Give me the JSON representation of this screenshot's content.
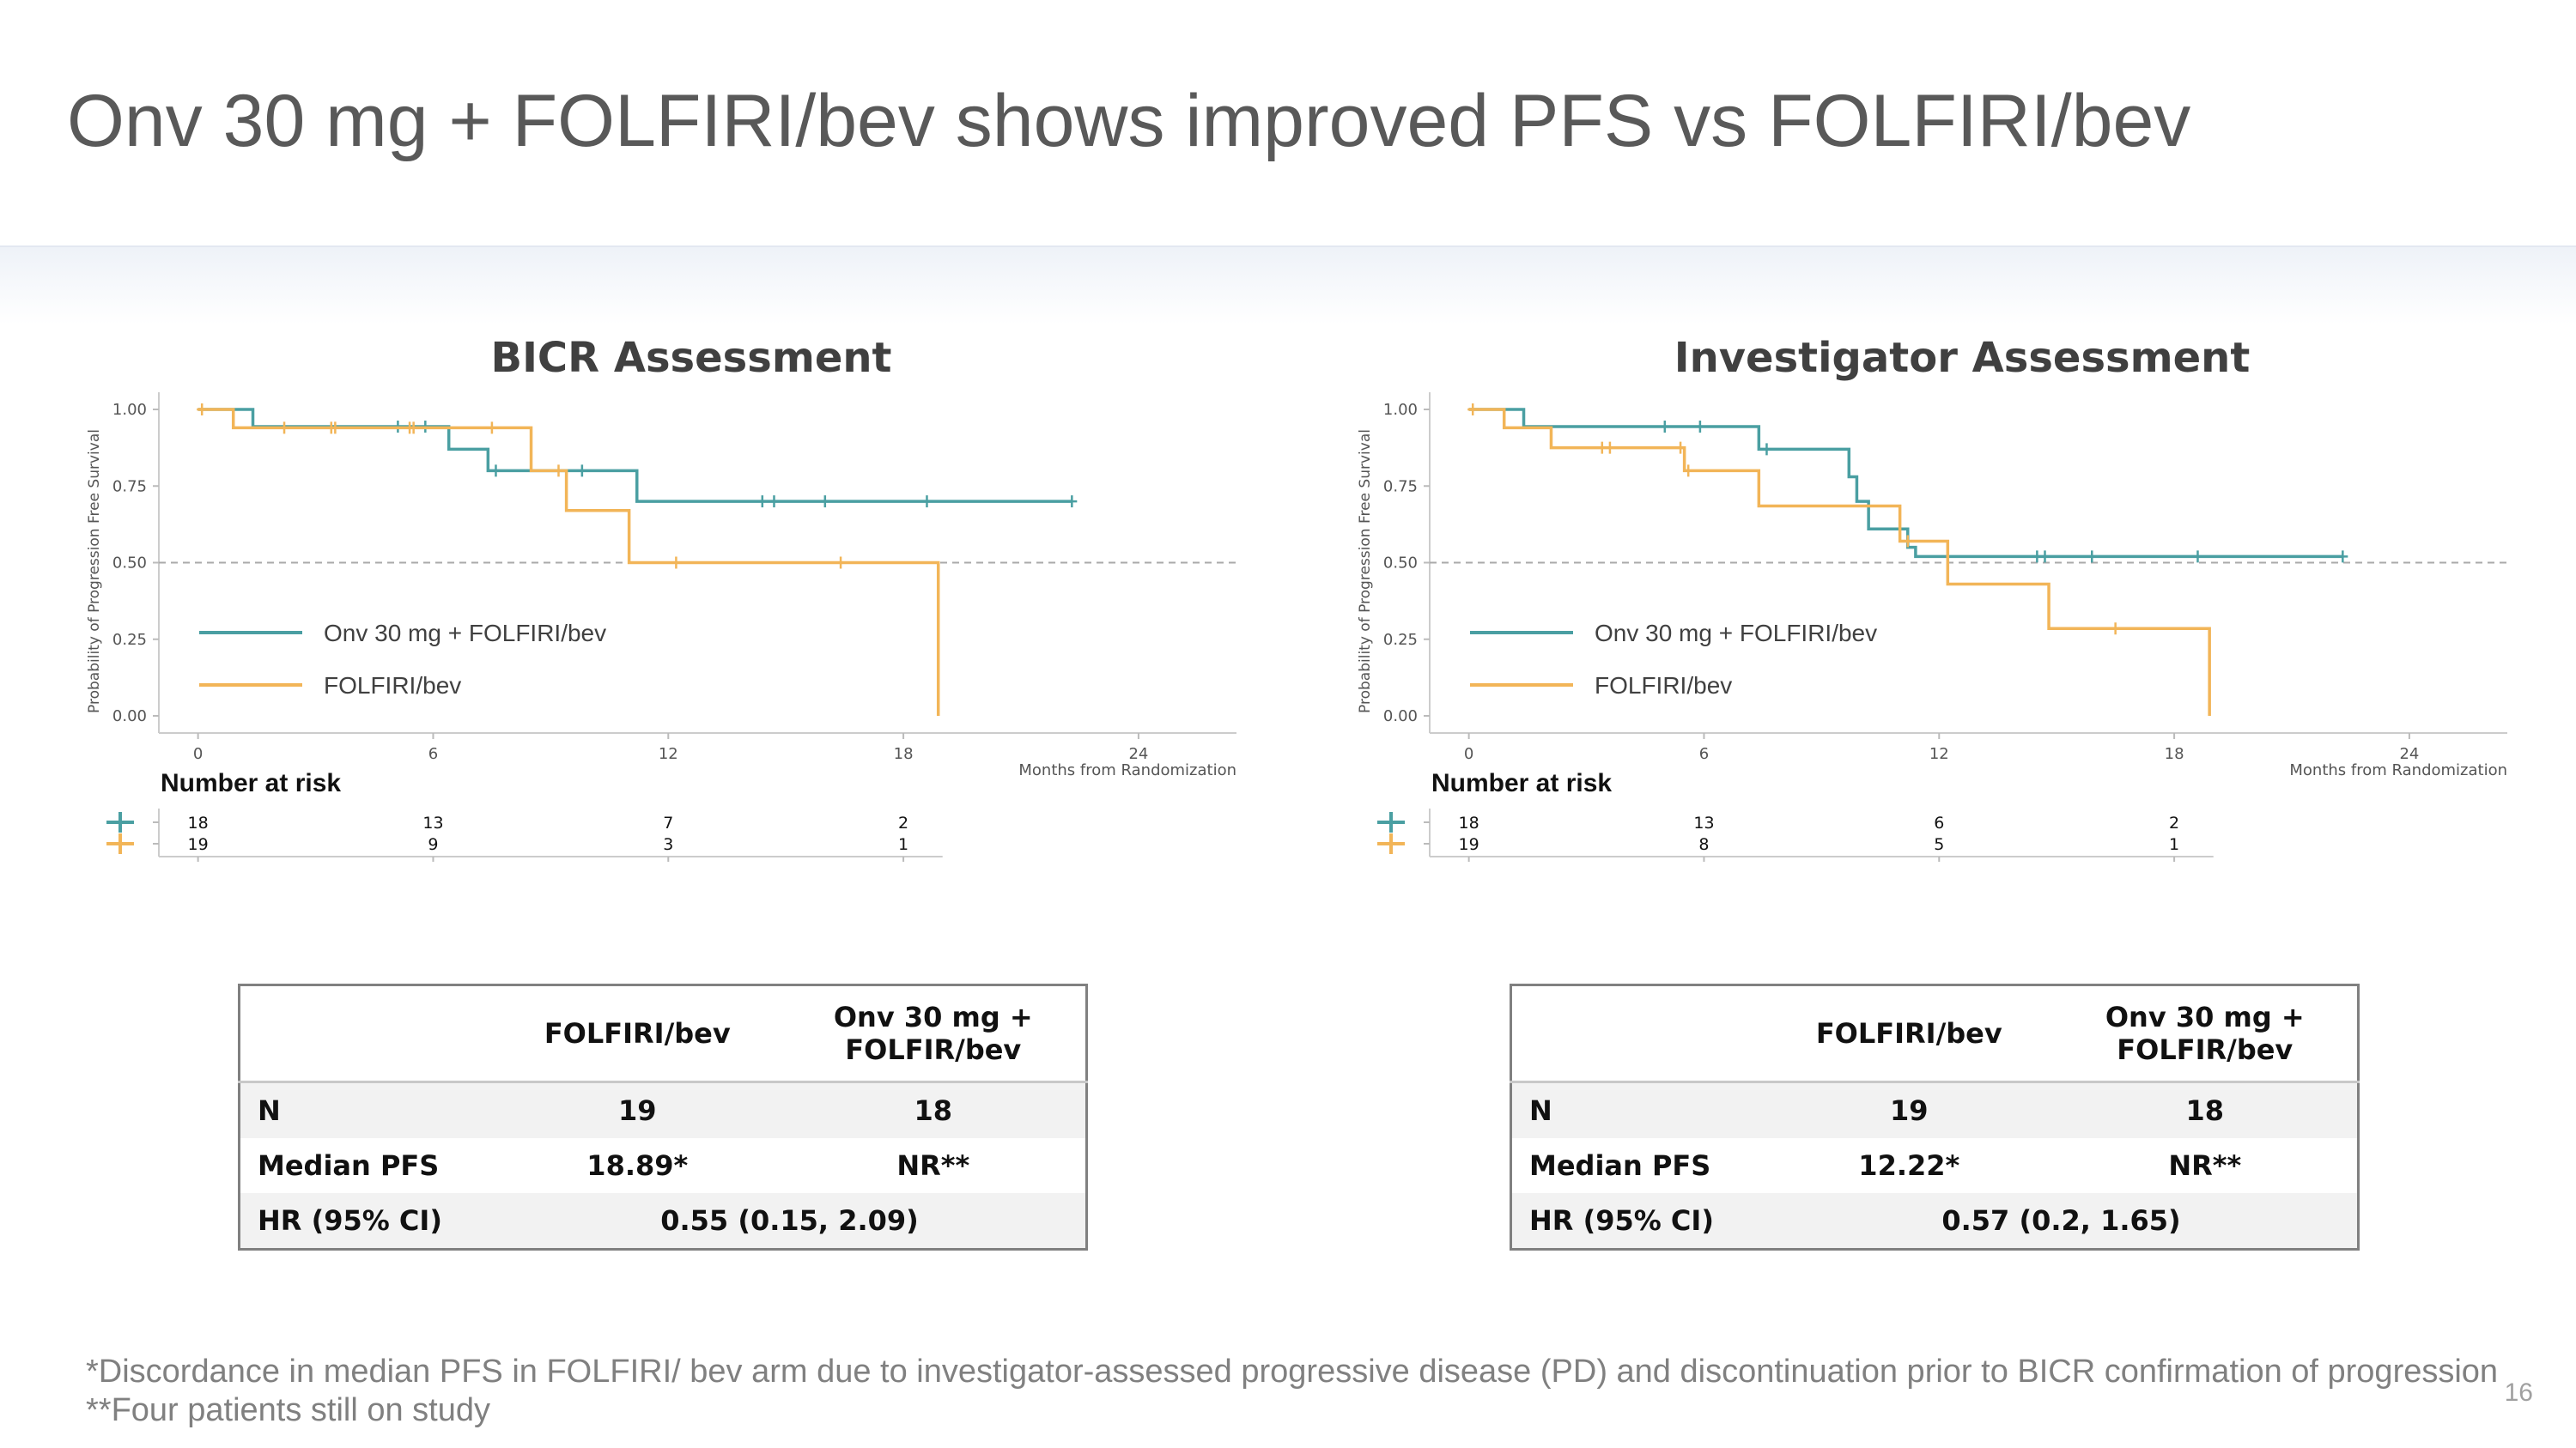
{
  "slide": {
    "title": "Onv 30 mg + FOLFIRI/bev shows improved PFS vs FOLFIRI/bev",
    "footnote1": "*Discordance in median PFS in FOLFIRI/ bev arm due to investigator-assessed progressive disease (PD) and discontinuation prior to BICR confirmation of progression",
    "footnote2": "**Four patients still on study",
    "page_number": "16"
  },
  "colors": {
    "onv": "#4a9fa2",
    "folfiri": "#f2b558",
    "reference_line": "#aaaaaa"
  },
  "chart_data": [
    {
      "type": "line",
      "subtype": "kaplan-meier",
      "title": "BICR Assessment",
      "ylabel": "Probability of Progression Free Survival",
      "xlabel": "Months from Randomization",
      "xlim": [
        -1,
        26.5
      ],
      "ylim": [
        0,
        1
      ],
      "xticks": [
        0,
        6,
        12,
        18,
        24
      ],
      "yticks": [
        "0.00",
        "0.25",
        "0.50",
        "0.75",
        "1.00"
      ],
      "reference_y": 0.5,
      "legend": {
        "position": "bottom-left",
        "entries": [
          "Onv 30 mg + FOLFIRI/bev",
          "FOLFIRI/bev"
        ]
      },
      "series": [
        {
          "name": "Onv 30 mg + FOLFIRI/bev",
          "color": "#4a9fa2",
          "steps": [
            [
              0,
              1.0
            ],
            [
              1.4,
              0.944
            ],
            [
              6.4,
              0.87
            ],
            [
              7.4,
              0.8
            ],
            [
              11.2,
              0.7
            ]
          ],
          "end_x": 22.3,
          "censored": [
            [
              5.1,
              0.944
            ],
            [
              5.8,
              0.944
            ],
            [
              7.6,
              0.8
            ],
            [
              9.8,
              0.8
            ],
            [
              14.4,
              0.7
            ],
            [
              14.7,
              0.7
            ],
            [
              16.0,
              0.7
            ],
            [
              18.6,
              0.7
            ],
            [
              22.3,
              0.7
            ]
          ]
        },
        {
          "name": "FOLFIRI/bev",
          "color": "#f2b558",
          "steps": [
            [
              0,
              1.0
            ],
            [
              0.9,
              0.94
            ],
            [
              8.5,
              0.8
            ],
            [
              9.4,
              0.67
            ],
            [
              11.0,
              0.5
            ],
            [
              18.89,
              0.0
            ]
          ],
          "end_x": 18.89,
          "censored": [
            [
              0.1,
              1.0
            ],
            [
              2.2,
              0.94
            ],
            [
              3.4,
              0.94
            ],
            [
              3.5,
              0.94
            ],
            [
              5.4,
              0.94
            ],
            [
              5.5,
              0.94
            ],
            [
              7.5,
              0.94
            ],
            [
              9.2,
              0.8
            ],
            [
              12.2,
              0.5
            ],
            [
              16.4,
              0.5
            ]
          ]
        }
      ],
      "number_at_risk": {
        "title": "Number at risk",
        "times": [
          0,
          6,
          12,
          18
        ],
        "rows": [
          {
            "name": "Onv 30 mg + FOLFIRI/bev",
            "values": [
              "18",
              "13",
              "7",
              "2"
            ]
          },
          {
            "name": "FOLFIRI/bev",
            "values": [
              "19",
              "9",
              "3",
              "1"
            ]
          }
        ]
      }
    },
    {
      "type": "line",
      "subtype": "kaplan-meier",
      "title": "Investigator Assessment",
      "ylabel": "Probability of Progression Free Survival",
      "xlabel": "Months from Randomization",
      "xlim": [
        -1,
        26.5
      ],
      "ylim": [
        0,
        1
      ],
      "xticks": [
        0,
        6,
        12,
        18,
        24
      ],
      "yticks": [
        "0.00",
        "0.25",
        "0.50",
        "0.75",
        "1.00"
      ],
      "reference_y": 0.5,
      "legend": {
        "position": "bottom-left",
        "entries": [
          "Onv 30 mg + FOLFIRI/bev",
          "FOLFIRI/bev"
        ]
      },
      "series": [
        {
          "name": "Onv 30 mg + FOLFIRI/bev",
          "color": "#4a9fa2",
          "steps": [
            [
              0,
              1.0
            ],
            [
              1.4,
              0.944
            ],
            [
              7.4,
              0.87
            ],
            [
              9.7,
              0.78
            ],
            [
              9.9,
              0.7
            ],
            [
              10.2,
              0.61
            ],
            [
              11.2,
              0.55
            ],
            [
              11.4,
              0.52
            ]
          ],
          "end_x": 22.3,
          "censored": [
            [
              5.0,
              0.944
            ],
            [
              5.9,
              0.944
            ],
            [
              7.6,
              0.87
            ],
            [
              14.5,
              0.52
            ],
            [
              14.7,
              0.52
            ],
            [
              15.9,
              0.52
            ],
            [
              18.6,
              0.52
            ],
            [
              22.3,
              0.52
            ]
          ]
        },
        {
          "name": "FOLFIRI/bev",
          "color": "#f2b558",
          "steps": [
            [
              0,
              1.0
            ],
            [
              0.9,
              0.94
            ],
            [
              2.1,
              0.875
            ],
            [
              5.5,
              0.8
            ],
            [
              7.4,
              0.685
            ],
            [
              11.0,
              0.57
            ],
            [
              12.22,
              0.43
            ],
            [
              14.8,
              0.285
            ],
            [
              18.9,
              0.0
            ]
          ],
          "end_x": 18.9,
          "censored": [
            [
              0.1,
              1.0
            ],
            [
              3.4,
              0.875
            ],
            [
              3.6,
              0.875
            ],
            [
              5.4,
              0.875
            ],
            [
              5.6,
              0.8
            ],
            [
              11.2,
              0.57
            ],
            [
              16.5,
              0.285
            ]
          ]
        }
      ],
      "number_at_risk": {
        "title": "Number at risk",
        "times": [
          0,
          6,
          12,
          18
        ],
        "rows": [
          {
            "name": "Onv 30 mg + FOLFIRI/bev",
            "values": [
              "18",
              "13",
              "6",
              "2"
            ]
          },
          {
            "name": "FOLFIRI/bev",
            "values": [
              "19",
              "8",
              "5",
              "1"
            ]
          }
        ]
      }
    }
  ],
  "tables": {
    "left": {
      "headers": {
        "empty": "",
        "col1": "FOLFIRI/bev",
        "col2_line1": "Onv 30 mg +",
        "col2_line2": "FOLFIR/bev"
      },
      "rows": {
        "n": {
          "label": "N",
          "col1": "19",
          "col2": "18"
        },
        "median": {
          "label": "Median PFS",
          "col1": "18.89*",
          "col2": "NR**"
        },
        "hr": {
          "label": "HR (95% CI)",
          "value": "0.55 (0.15, 2.09)"
        }
      }
    },
    "right": {
      "headers": {
        "empty": "",
        "col1": "FOLFIRI/bev",
        "col2_line1": "Onv 30 mg +",
        "col2_line2": "FOLFIR/bev"
      },
      "rows": {
        "n": {
          "label": "N",
          "col1": "19",
          "col2": "18"
        },
        "median": {
          "label": "Median PFS",
          "col1": "12.22*",
          "col2": "NR**"
        },
        "hr": {
          "label": "HR (95% CI)",
          "value": "0.57 (0.2, 1.65)"
        }
      }
    }
  }
}
